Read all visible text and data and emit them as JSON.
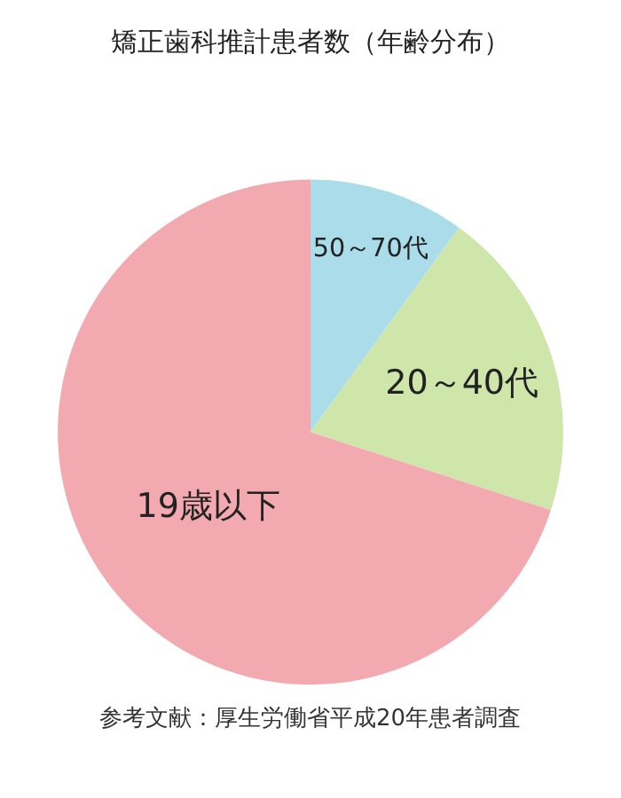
{
  "chart_data": {
    "type": "pie",
    "title": "矯正歯科推計患者数（年齢分布）",
    "categories": [
      "50～70代",
      "20～40代",
      "19歳以下"
    ],
    "values": [
      10,
      20,
      70
    ],
    "colors": [
      "#aadcea",
      "#cfe6ab",
      "#f2aab0"
    ],
    "legend": false,
    "annotations": [
      "参考文献：厚生労働省平成20年患者調査"
    ]
  }
}
